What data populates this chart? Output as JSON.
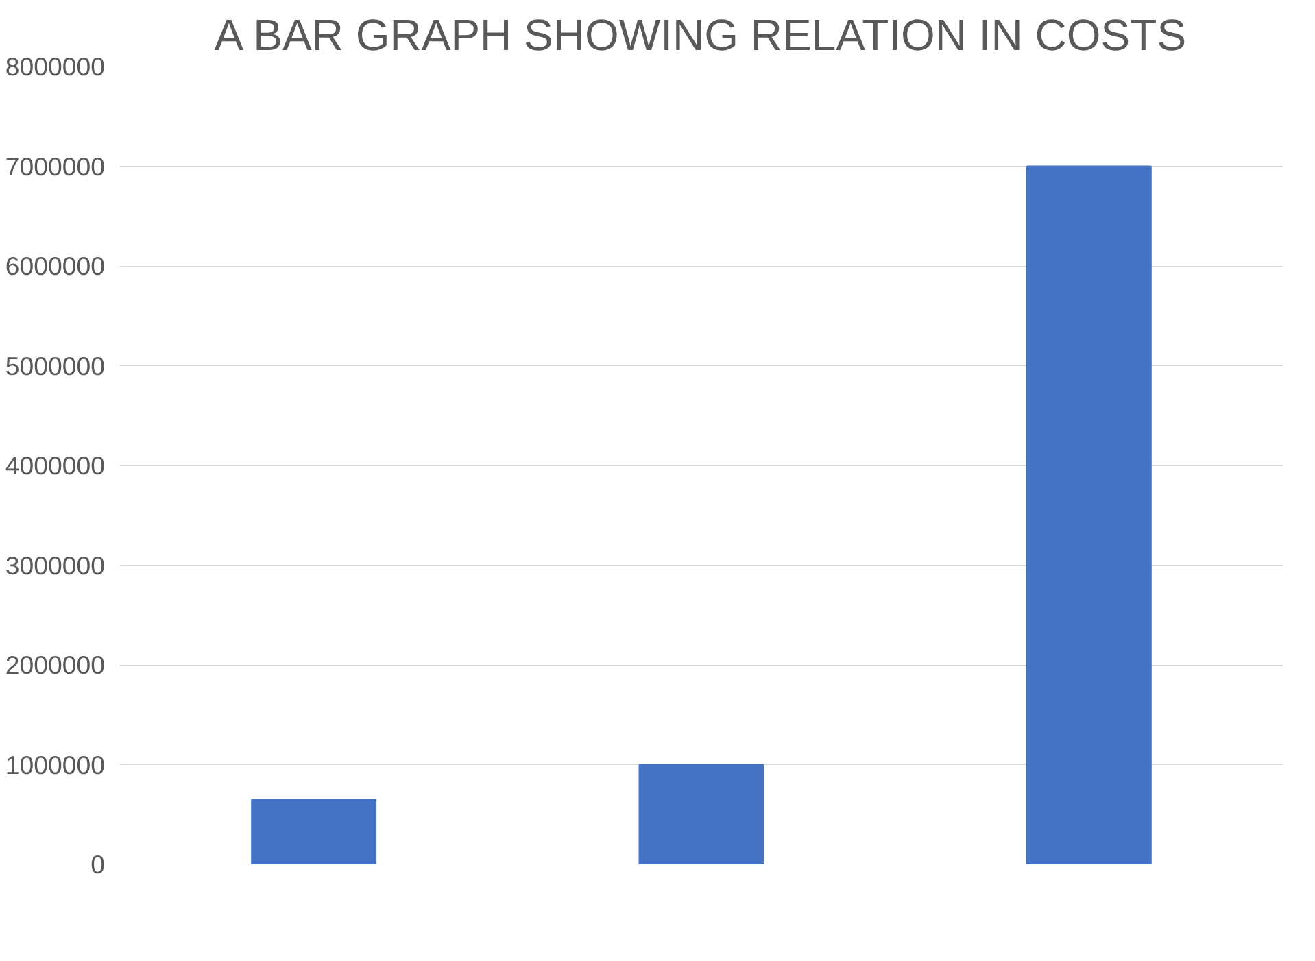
{
  "chart_data": {
    "type": "bar",
    "title": "A BAR GRAPH SHOWING RELATION IN COSTS",
    "categories": [
      null,
      null,
      null
    ],
    "values": [
      650000,
      1000000,
      7000000
    ],
    "color": "#4472c4",
    "ylim": [
      0,
      8000000
    ],
    "yticks": [
      0,
      1000000,
      2000000,
      3000000,
      4000000,
      5000000,
      6000000,
      7000000,
      8000000
    ],
    "grid": "y"
  }
}
